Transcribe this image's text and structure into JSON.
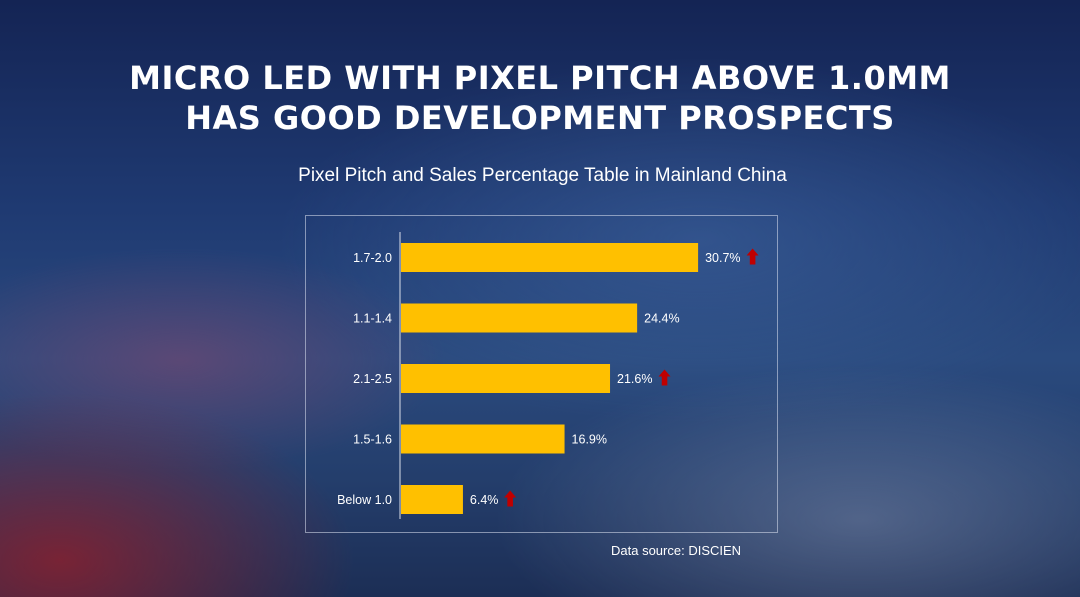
{
  "title_line1": "MICRO LED WITH PIXEL PITCH ABOVE 1.0MM",
  "title_line2": "HAS GOOD DEVELOPMENT PROSPECTS",
  "subtitle": "Pixel Pitch and Sales Percentage Table in Mainland China",
  "source": "Data source: DISCIEN",
  "colors": {
    "bar": "#FFC000",
    "arrow": "#C00000",
    "text": "#FFFFFF"
  },
  "chart_data": {
    "type": "bar",
    "orientation": "horizontal",
    "categories": [
      "1.7-2.0",
      "1.1-1.4",
      "2.1-2.5",
      "1.5-1.6",
      "Below 1.0"
    ],
    "values": [
      30.7,
      24.4,
      21.6,
      16.9,
      6.4
    ],
    "value_labels": [
      "30.7%",
      "24.4%",
      "21.6%",
      "16.9%",
      "6.4%"
    ],
    "trend_up": [
      true,
      false,
      true,
      false,
      true
    ],
    "title": "Pixel Pitch and Sales Percentage Table in Mainland China",
    "xlim": [
      0,
      31
    ],
    "grid": false,
    "legend": "none"
  }
}
